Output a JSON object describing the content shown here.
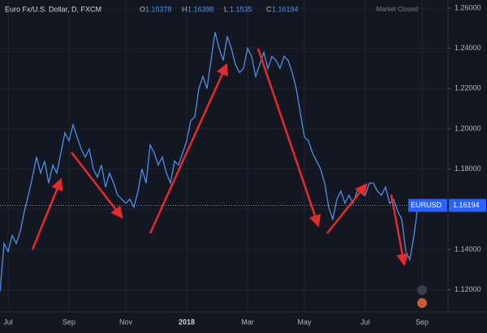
{
  "chart_data": {
    "type": "line",
    "title": "Euro Fx/U.S. Dollar, D, FXCM",
    "ohlc": [
      {
        "label": "O",
        "value": 1.15378
      },
      {
        "label": "H",
        "value": 1.16398
      },
      {
        "label": "L",
        "value": 1.1535
      },
      {
        "label": "C",
        "value": 1.16194
      }
    ],
    "status": "Market Closed",
    "last_price": {
      "label": "EURUSD",
      "value": 1.16194
    },
    "categories": [
      null,
      null,
      "Jul",
      null,
      null,
      null,
      null,
      null,
      null,
      null,
      null,
      null,
      null,
      null,
      null,
      null,
      null,
      "Sep",
      null,
      null,
      null,
      null,
      null,
      null,
      null,
      null,
      null,
      null,
      null,
      null,
      null,
      "Nov",
      null,
      null,
      null,
      null,
      null,
      null,
      null,
      null,
      null,
      null,
      null,
      null,
      null,
      null,
      "2018",
      null,
      null,
      null,
      null,
      null,
      null,
      null,
      null,
      null,
      null,
      null,
      null,
      null,
      null,
      "Mar",
      null,
      null,
      null,
      null,
      null,
      null,
      null,
      null,
      null,
      null,
      null,
      null,
      null,
      "May",
      null,
      null,
      null,
      null,
      null,
      null,
      null,
      null,
      null,
      null,
      null,
      null,
      null,
      null,
      "Jul",
      null,
      null,
      null,
      null,
      null,
      null,
      null,
      null,
      null,
      null,
      null,
      null,
      null,
      "Sep"
    ],
    "series": [
      {
        "name": "EURUSD",
        "color": "#4f8fe6",
        "values": [
          1.119,
          1.143,
          1.139,
          1.147,
          1.143,
          1.149,
          1.159,
          1.167,
          1.176,
          1.186,
          1.178,
          1.184,
          1.173,
          1.182,
          1.178,
          1.188,
          1.198,
          1.194,
          1.202,
          1.196,
          1.19,
          1.186,
          1.19,
          1.18,
          1.176,
          1.182,
          1.171,
          1.178,
          1.173,
          1.167,
          1.165,
          1.163,
          1.165,
          1.161,
          1.169,
          1.18,
          1.173,
          1.192,
          1.188,
          1.182,
          1.186,
          1.178,
          1.173,
          1.184,
          1.182,
          1.188,
          1.194,
          1.204,
          1.206,
          1.22,
          1.226,
          1.22,
          1.234,
          1.248,
          1.24,
          1.234,
          1.246,
          1.24,
          1.232,
          1.228,
          1.23,
          1.24,
          1.236,
          1.226,
          1.232,
          1.238,
          1.23,
          1.236,
          1.234,
          1.23,
          1.236,
          1.234,
          1.228,
          1.22,
          1.208,
          1.196,
          1.194,
          1.188,
          1.184,
          1.18,
          1.173,
          1.161,
          1.155,
          1.165,
          1.169,
          1.163,
          1.167,
          1.163,
          1.169,
          1.171,
          1.167,
          1.173,
          1.173,
          1.169,
          1.167,
          1.171,
          1.163,
          1.165,
          1.159,
          1.155,
          1.139,
          1.135,
          1.147,
          1.162,
          null
        ]
      }
    ],
    "ylim": [
      1.109,
      1.264
    ],
    "yticks": [
      {
        "value": 1.12,
        "label": "1.12000"
      },
      {
        "value": 1.14,
        "label": "1.14000"
      },
      {
        "value": 1.16,
        "label": "1.16000"
      },
      {
        "value": 1.18,
        "label": "1.18000"
      },
      {
        "value": 1.2,
        "label": "1.20000"
      },
      {
        "value": 1.22,
        "label": "1.22000"
      },
      {
        "value": 1.24,
        "label": "1.24000"
      },
      {
        "value": 1.26,
        "label": "1.26000"
      }
    ],
    "grid": true
  }
}
